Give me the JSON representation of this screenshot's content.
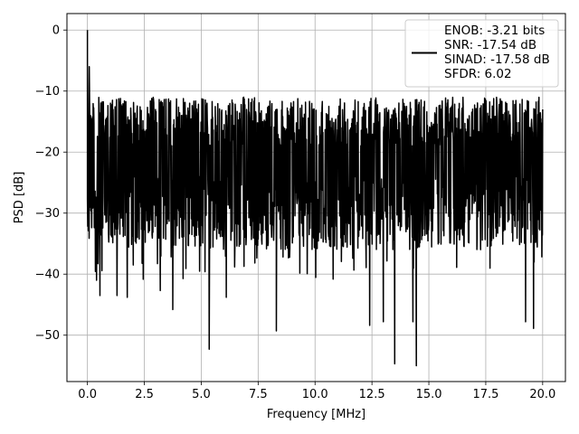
{
  "chart_data": {
    "type": "line",
    "title": "",
    "xlabel": "Frequency [MHz]",
    "ylabel": "PSD [dB]",
    "xlim": [
      -0.9,
      21.0
    ],
    "ylim": [
      -57.6,
      2.7
    ],
    "x_ticks": [
      0.0,
      2.5,
      5.0,
      7.5,
      10.0,
      12.5,
      15.0,
      17.5,
      20.0
    ],
    "x_tick_labels": [
      "0.0",
      "2.5",
      "5.0",
      "7.5",
      "10.0",
      "12.5",
      "15.0",
      "17.5",
      "20.0"
    ],
    "y_ticks": [
      0,
      -10,
      -20,
      -30,
      -40,
      -50
    ],
    "y_tick_labels": [
      "0",
      "−10",
      "−20",
      "−30",
      "−40",
      "−50"
    ],
    "grid": true,
    "legend_position": "top-right",
    "line_color": "#000000",
    "series": [
      {
        "legend_lines": [
          "ENOB: -3.21 bits",
          "SNR: -17.54 dB",
          "SINAD: -17.58 dB",
          "SFDR: 6.02"
        ],
        "description": "noise-like power spectral density",
        "x_range": [
          0.0,
          20.0
        ],
        "peak": {
          "x": 0.0,
          "y": 0.0
        },
        "noise_floor_mean": -22,
        "noise_band_upper": -14,
        "notable_dips": [
          {
            "x": 0.4,
            "y": -41
          },
          {
            "x": 0.55,
            "y": -43.5
          },
          {
            "x": 1.3,
            "y": -43.5
          },
          {
            "x": 1.75,
            "y": -43.8
          },
          {
            "x": 3.2,
            "y": -42.7
          },
          {
            "x": 3.75,
            "y": -45.8
          },
          {
            "x": 5.35,
            "y": -52.3
          },
          {
            "x": 6.1,
            "y": -43.8
          },
          {
            "x": 8.3,
            "y": -49.3
          },
          {
            "x": 12.4,
            "y": -48.4
          },
          {
            "x": 13.0,
            "y": -47.8
          },
          {
            "x": 13.5,
            "y": -54.7
          },
          {
            "x": 14.3,
            "y": -47.8
          },
          {
            "x": 14.45,
            "y": -55.0
          },
          {
            "x": 19.25,
            "y": -47.8
          },
          {
            "x": 19.6,
            "y": -48.9
          }
        ]
      }
    ]
  }
}
